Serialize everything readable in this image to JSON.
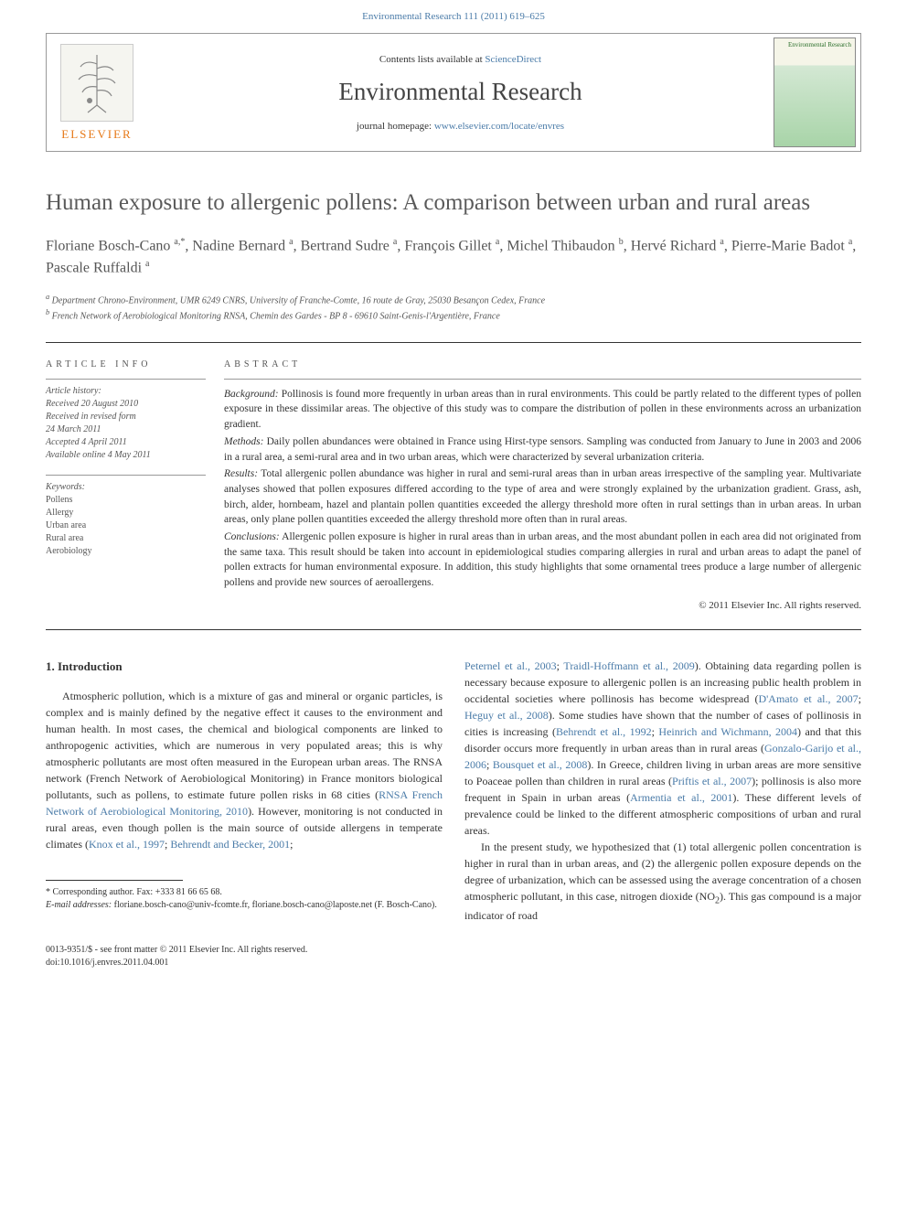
{
  "top_link": "Environmental Research 111 (2011) 619–625",
  "header": {
    "contents_prefix": "Contents lists available at ",
    "contents_link": "ScienceDirect",
    "journal_name": "Environmental Research",
    "homepage_prefix": "journal homepage: ",
    "homepage_url": "www.elsevier.com/locate/envres",
    "elsevier": "ELSEVIER",
    "cover_title": "Environmental Research"
  },
  "article": {
    "title": "Human exposure to allergenic pollens: A comparison between urban and rural areas",
    "authors_html": "Floriane Bosch-Cano <sup>a,*</sup>, Nadine Bernard <sup>a</sup>, Bertrand Sudre <sup>a</sup>, François Gillet <sup>a</sup>, Michel Thibaudon <sup>b</sup>, Hervé Richard <sup>a</sup>, Pierre-Marie Badot <sup>a</sup>, Pascale Ruffaldi <sup>a</sup>",
    "affiliations": [
      "a Department Chrono-Environment, UMR 6249 CNRS, University of Franche-Comte, 16 route de Gray, 25030 Besançon Cedex, France",
      "b French Network of Aerobiological Monitoring RNSA, Chemin des Gardes - BP 8 - 69610 Saint-Genis-l'Argentière, France"
    ]
  },
  "info": {
    "label": "ARTICLE INFO",
    "history_label": "Article history:",
    "history": [
      "Received 20 August 2010",
      "Received in revised form",
      "24 March 2011",
      "Accepted 4 April 2011",
      "Available online 4 May 2011"
    ],
    "keywords_label": "Keywords:",
    "keywords": [
      "Pollens",
      "Allergy",
      "Urban area",
      "Rural area",
      "Aerobiology"
    ]
  },
  "abstract": {
    "label": "ABSTRACT",
    "paragraphs": [
      {
        "name": "Background:",
        "text": "Pollinosis is found more frequently in urban areas than in rural environments. This could be partly related to the different types of pollen exposure in these dissimilar areas. The objective of this study was to compare the distribution of pollen in these environments across an urbanization gradient."
      },
      {
        "name": "Methods:",
        "text": "Daily pollen abundances were obtained in France using Hirst-type sensors. Sampling was conducted from January to June in 2003 and 2006 in a rural area, a semi-rural area and in two urban areas, which were characterized by several urbanization criteria."
      },
      {
        "name": "Results:",
        "text": "Total allergenic pollen abundance was higher in rural and semi-rural areas than in urban areas irrespective of the sampling year. Multivariate analyses showed that pollen exposures differed according to the type of area and were strongly explained by the urbanization gradient. Grass, ash, birch, alder, hornbeam, hazel and plantain pollen quantities exceeded the allergy threshold more often in rural settings than in urban areas. In urban areas, only plane pollen quantities exceeded the allergy threshold more often than in rural areas."
      },
      {
        "name": "Conclusions:",
        "text": "Allergenic pollen exposure is higher in rural areas than in urban areas, and the most abundant pollen in each area did not originated from the same taxa. This result should be taken into account in epidemiological studies comparing allergies in rural and urban areas to adapt the panel of pollen extracts for human environmental exposure. In addition, this study highlights that some ornamental trees produce a large number of allergenic pollens and provide new sources of aeroallergens."
      }
    ],
    "copyright": "© 2011 Elsevier Inc. All rights reserved."
  },
  "intro": {
    "heading": "1. Introduction",
    "col1": "Atmospheric pollution, which is a mixture of gas and mineral or organic particles, is complex and is mainly defined by the negative effect it causes to the environment and human health. In most cases, the chemical and biological components are linked to anthropogenic activities, which are numerous in very populated areas; this is why atmospheric pollutants are most often measured in the European urban areas. The RNSA network (French Network of Aerobiological Monitoring) in France monitors biological pollutants, such as pollens, to estimate future pollen risks in 68 cities (<span class=\"cite\">RNSA French Network of Aerobiological Monitoring, 2010</span>). However, monitoring is not conducted in rural areas, even though pollen is the main source of outside allergens in temperate climates (<span class=\"cite\">Knox et al., 1997</span>; <span class=\"cite\">Behrendt and Becker, 2001</span>;",
    "col2_a": "<span class=\"cite\">Peternel et al., 2003</span>; <span class=\"cite\">Traidl-Hoffmann et al., 2009</span>). Obtaining data regarding pollen is necessary because exposure to allergenic pollen is an increasing public health problem in occidental societies where pollinosis has become widespread (<span class=\"cite\">D'Amato et al., 2007</span>; <span class=\"cite\">Heguy et al., 2008</span>). Some studies have shown that the number of cases of pollinosis in cities is increasing (<span class=\"cite\">Behrendt et al., 1992</span>; <span class=\"cite\">Heinrich and Wichmann, 2004</span>) and that this disorder occurs more frequently in urban areas than in rural areas (<span class=\"cite\">Gonzalo-Garijo et al., 2006</span>; <span class=\"cite\">Bousquet et al., 2008</span>). In Greece, children living in urban areas are more sensitive to Poaceae pollen than children in rural areas (<span class=\"cite\">Priftis et al., 2007</span>); pollinosis is also more frequent in Spain in urban areas (<span class=\"cite\">Armentia et al., 2001</span>). These different levels of prevalence could be linked to the different atmospheric compositions of urban and rural areas.",
    "col2_b": "In the present study, we hypothesized that (1) total allergenic pollen concentration is higher in rural than in urban areas, and (2) the allergenic pollen exposure depends on the degree of urbanization, which can be assessed using the average concentration of a chosen atmospheric pollutant, in this case, nitrogen dioxide (NO<sub>2</sub>). This gas compound is a major indicator of road"
  },
  "footnotes": {
    "corr": "* Corresponding author. Fax: +333 81 66 65 68.",
    "email_label": "E-mail addresses:",
    "emails": "floriane.bosch-cano@univ-fcomte.fr, floriane.bosch-cano@laposte.net (F. Bosch-Cano)."
  },
  "bottom": {
    "line1": "0013-9351/$ - see front matter © 2011 Elsevier Inc. All rights reserved.",
    "line2": "doi:10.1016/j.envres.2011.04.001"
  }
}
